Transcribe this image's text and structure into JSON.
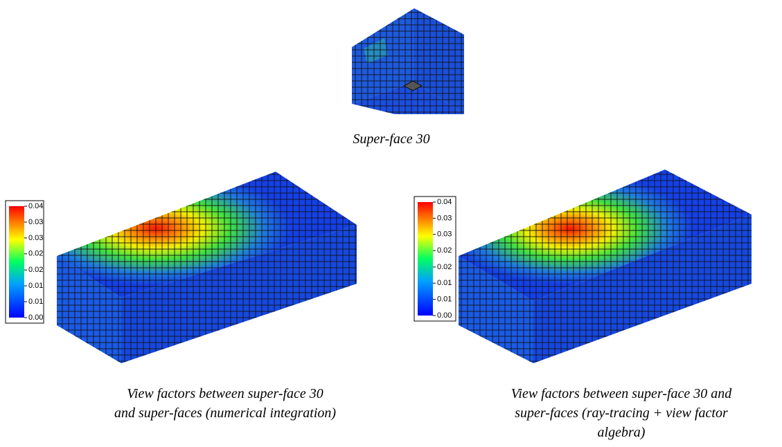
{
  "top_panel": {
    "caption": "Super-face 30"
  },
  "panels": [
    {
      "caption_lines": [
        "View factors between super-face 30",
        "and super-faces (numerical integration)"
      ],
      "colorbar": {
        "range": [
          0,
          0.04
        ],
        "ticks": [
          {
            "value": 0,
            "label": "0.00"
          },
          {
            "value": 0.0057,
            "label": "0.01"
          },
          {
            "value": 0.0114,
            "label": "0.01"
          },
          {
            "value": 0.0171,
            "label": "0.02"
          },
          {
            "value": 0.0229,
            "label": "0.02"
          },
          {
            "value": 0.0286,
            "label": "0.03"
          },
          {
            "value": 0.0343,
            "label": "0.03"
          },
          0.04
        ]
      }
    },
    {
      "caption_lines": [
        "View factors between super-face 30 and",
        "super-faces (ray-tracing + view factor",
        "algebra)"
      ],
      "colorbar": {
        "range": [
          0,
          0.04
        ],
        "ticks": [
          {
            "value": 0,
            "label": "0.00"
          },
          {
            "value": 0.0057,
            "label": "0.01"
          },
          {
            "value": 0.0114,
            "label": "0.01"
          },
          {
            "value": 0.0171,
            "label": "0.02"
          },
          {
            "value": 0.0229,
            "label": "0.02"
          },
          {
            "value": 0.0286,
            "label": "0.03"
          },
          {
            "value": 0.0343,
            "label": "0.03"
          },
          0.04
        ]
      }
    }
  ]
}
